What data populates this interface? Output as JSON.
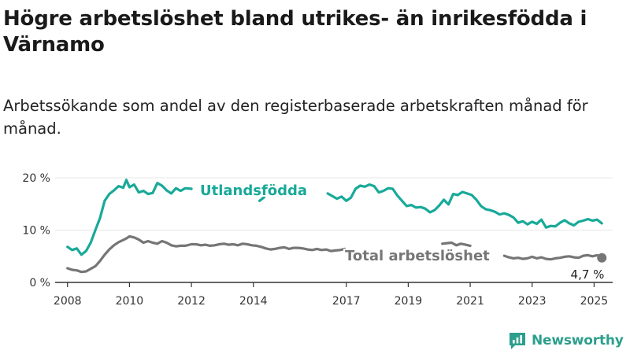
{
  "title": "Högre arbetslöshet bland utrikes- än inrikesfödda i Värnamo",
  "subtitle": "Arbetssökande som andel av den registerbaserade arbetskraften månad för månad.",
  "brand": "Newsworthy",
  "colors": {
    "foreign": "#18a999",
    "total": "#767577",
    "axis": "#333333",
    "grid": "#e8e8e8"
  },
  "chart_data": {
    "type": "line",
    "title": "Högre arbetslöshet bland utrikes- än inrikesfödda i Värnamo",
    "xlabel": "",
    "ylabel": "",
    "xlim": [
      2007.6,
      2025.6
    ],
    "ylim": [
      0,
      20
    ],
    "y_ticks": [
      0,
      10,
      20
    ],
    "y_tick_labels": [
      "0 %",
      "10 %",
      "20 %"
    ],
    "x_ticks": [
      2008,
      2010,
      2012,
      2014,
      2017,
      2019,
      2021,
      2023,
      2025
    ],
    "x_tick_labels": [
      "2008",
      "2010",
      "2012",
      "2014",
      "2017",
      "2019",
      "2021",
      "2023",
      "2025"
    ],
    "grid": true,
    "legend": "inline labels",
    "series": [
      {
        "name": "Utlandsfödda",
        "color": "#18a999",
        "x": [
          2008.0,
          2008.15,
          2008.3,
          2008.45,
          2008.6,
          2008.75,
          2008.9,
          2009.05,
          2009.2,
          2009.35,
          2009.5,
          2009.65,
          2009.8,
          2009.9,
          2010.0,
          2010.15,
          2010.3,
          2010.45,
          2010.6,
          2010.75,
          2010.9,
          2011.05,
          2011.2,
          2011.35,
          2011.5,
          2011.65,
          2011.8,
          2012.0,
          null,
          2014.2,
          2014.35,
          null,
          2016.4,
          2016.55,
          2016.7,
          2016.85,
          2017.0,
          2017.15,
          2017.3,
          2017.45,
          2017.6,
          2017.75,
          2017.9,
          2018.05,
          2018.2,
          2018.35,
          2018.5,
          2018.65,
          2018.8,
          2018.95,
          2019.1,
          2019.25,
          2019.4,
          2019.55,
          2019.7,
          2019.85,
          2020.0,
          2020.15,
          2020.3,
          2020.45,
          2020.6,
          2020.75,
          2020.9,
          2021.05,
          2021.2,
          2021.35,
          2021.5,
          2021.65,
          2021.8,
          2021.95,
          2022.1,
          2022.25,
          2022.4,
          2022.55,
          2022.7,
          2022.85,
          2023.0,
          2023.15,
          2023.3,
          2023.45,
          2023.6,
          2023.75,
          2023.9,
          2024.05,
          2024.2,
          2024.35,
          2024.5,
          2024.65,
          2024.8,
          2024.95,
          2025.1,
          2025.25
        ],
        "y": [
          6.8,
          6.2,
          6.5,
          5.3,
          6.0,
          7.6,
          10.0,
          12.3,
          15.6,
          16.9,
          17.6,
          18.4,
          18.1,
          19.6,
          18.2,
          18.7,
          17.2,
          17.5,
          16.9,
          17.1,
          19.0,
          18.5,
          17.6,
          17.0,
          18.0,
          17.5,
          18.0,
          17.9,
          null,
          15.6,
          16.3,
          null,
          17.0,
          16.5,
          16.0,
          16.4,
          15.6,
          16.2,
          17.9,
          18.5,
          18.3,
          18.7,
          18.4,
          17.2,
          17.5,
          18.0,
          17.9,
          16.6,
          15.6,
          14.6,
          14.8,
          14.3,
          14.4,
          14.1,
          13.4,
          13.8,
          14.7,
          15.8,
          14.9,
          16.9,
          16.7,
          17.3,
          17.0,
          16.7,
          15.8,
          14.6,
          14.0,
          13.8,
          13.5,
          13.0,
          13.2,
          12.9,
          12.4,
          11.4,
          11.7,
          11.1,
          11.6,
          11.2,
          12.0,
          10.5,
          10.8,
          10.7,
          11.4,
          11.9,
          11.3,
          10.9,
          11.6,
          11.8,
          12.1,
          11.8,
          12.0,
          11.3
        ]
      },
      {
        "name": "Total arbetslöshet",
        "color": "#767577",
        "x": [
          2008.0,
          2008.15,
          2008.3,
          2008.45,
          2008.6,
          2008.75,
          2008.9,
          2009.05,
          2009.2,
          2009.35,
          2009.5,
          2009.65,
          2009.8,
          2009.9,
          2010.0,
          2010.15,
          2010.3,
          2010.45,
          2010.6,
          2010.75,
          2010.9,
          2011.05,
          2011.2,
          2011.35,
          2011.5,
          2011.65,
          2011.8,
          2012.0,
          2012.15,
          2012.3,
          2012.45,
          2012.6,
          2012.75,
          2012.9,
          2013.05,
          2013.2,
          2013.35,
          2013.5,
          2013.65,
          2013.8,
          2013.95,
          2014.1,
          2014.25,
          2014.4,
          2014.55,
          2014.7,
          2014.85,
          2015.0,
          2015.15,
          2015.3,
          2015.45,
          2015.6,
          2015.75,
          2015.9,
          2016.05,
          2016.2,
          2016.35,
          2016.5,
          2016.65,
          2016.8,
          2016.95,
          null,
          2020.1,
          2020.25,
          2020.4,
          2020.55,
          2020.7,
          2020.85,
          2021.0,
          null,
          2022.1,
          2022.25,
          2022.4,
          2022.55,
          2022.7,
          2022.85,
          2023.0,
          2023.15,
          2023.3,
          2023.45,
          2023.6,
          2023.75,
          2023.9,
          2024.05,
          2024.2,
          2024.35,
          2024.5,
          2024.65,
          2024.8,
          2024.95,
          2025.1,
          2025.25
        ],
        "y": [
          2.7,
          2.4,
          2.3,
          2.0,
          2.1,
          2.6,
          3.1,
          4.1,
          5.3,
          6.3,
          7.1,
          7.7,
          8.1,
          8.4,
          8.8,
          8.6,
          8.2,
          7.6,
          7.9,
          7.6,
          7.4,
          7.9,
          7.6,
          7.1,
          6.9,
          7.0,
          7.0,
          7.3,
          7.3,
          7.1,
          7.2,
          7.0,
          7.1,
          7.3,
          7.4,
          7.2,
          7.3,
          7.1,
          7.4,
          7.3,
          7.1,
          7.0,
          6.8,
          6.5,
          6.3,
          6.4,
          6.6,
          6.7,
          6.4,
          6.6,
          6.6,
          6.5,
          6.3,
          6.2,
          6.4,
          6.2,
          6.3,
          6.0,
          6.1,
          6.2,
          6.4,
          null,
          7.4,
          7.5,
          7.6,
          7.1,
          7.4,
          7.2,
          7.0,
          null,
          5.1,
          4.8,
          4.6,
          4.7,
          4.5,
          4.6,
          4.9,
          4.6,
          4.8,
          4.5,
          4.4,
          4.6,
          4.7,
          4.9,
          5.0,
          4.8,
          4.7,
          5.1,
          5.2,
          5.0,
          5.2,
          4.7
        ]
      }
    ],
    "annotations": [
      {
        "text": "Utlandsfödda",
        "series": "Utlandsfödda"
      },
      {
        "text": "Total arbetslöshet",
        "series": "Total arbetslöshet"
      },
      {
        "text": "4,7 %",
        "x": 2025.25,
        "y": 4.7
      }
    ]
  }
}
